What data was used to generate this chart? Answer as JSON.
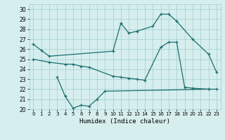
{
  "xlabel": "Humidex (Indice chaleur)",
  "bg_color": "#d6eeee",
  "grid_color": "#9ecece",
  "line_color": "#1a6e6e",
  "x_ticks": [
    0,
    1,
    2,
    3,
    4,
    5,
    6,
    7,
    8,
    9,
    10,
    11,
    12,
    13,
    14,
    15,
    16,
    17,
    18,
    19,
    20,
    21,
    22,
    23
  ],
  "ylim": [
    20,
    30.5
  ],
  "xlim": [
    -0.5,
    23.5
  ],
  "yticks": [
    20,
    21,
    22,
    23,
    24,
    25,
    26,
    27,
    28,
    29,
    30
  ],
  "series1_x": [
    0,
    1,
    2,
    10,
    11,
    12,
    13,
    15,
    16,
    17,
    18,
    20,
    22,
    23
  ],
  "series1_y": [
    26.5,
    25.9,
    25.3,
    25.8,
    28.6,
    27.6,
    27.8,
    28.3,
    29.5,
    29.5,
    28.8,
    27.0,
    25.5,
    23.7
  ],
  "series2_x": [
    3,
    4,
    5,
    6,
    7,
    8,
    9,
    22
  ],
  "series2_y": [
    23.2,
    21.3,
    20.1,
    20.4,
    20.3,
    21.0,
    21.8,
    22.0
  ],
  "series3_x": [
    0,
    2,
    4,
    5,
    6,
    7,
    10,
    11,
    12,
    13,
    14,
    16,
    17,
    18,
    19,
    20,
    22,
    23
  ],
  "series3_y": [
    25.0,
    24.7,
    24.5,
    24.5,
    24.3,
    24.2,
    23.3,
    23.2,
    23.1,
    23.0,
    22.9,
    26.2,
    26.7,
    26.7,
    22.2,
    22.1,
    22.0,
    22.0
  ]
}
